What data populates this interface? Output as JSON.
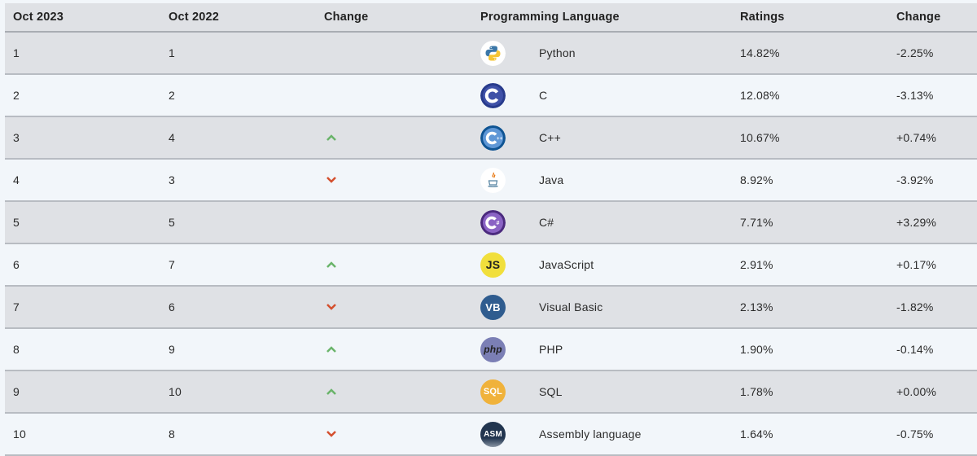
{
  "header": {
    "col1": "Oct 2023",
    "col2": "Oct 2022",
    "col3": "Change",
    "col4": "Programming Language",
    "col5": "Ratings",
    "col6": "Change"
  },
  "colors": {
    "up": "#6ab46a",
    "down": "#d4502e",
    "row_dark": "#dfe1e5",
    "row_light": "#f2f6fa"
  },
  "rows": [
    {
      "rank": "1",
      "prev": "1",
      "trend": "none",
      "icon": "python-logo-icon",
      "lang": "Python",
      "rating": "14.82%",
      "change": "-2.25%"
    },
    {
      "rank": "2",
      "prev": "2",
      "trend": "none",
      "icon": "c-logo-icon",
      "lang": "C",
      "rating": "12.08%",
      "change": "-3.13%"
    },
    {
      "rank": "3",
      "prev": "4",
      "trend": "up",
      "icon": "cpp-logo-icon",
      "lang": "C++",
      "rating": "10.67%",
      "change": "+0.74%"
    },
    {
      "rank": "4",
      "prev": "3",
      "trend": "down",
      "icon": "java-logo-icon",
      "lang": "Java",
      "rating": "8.92%",
      "change": "-3.92%"
    },
    {
      "rank": "5",
      "prev": "5",
      "trend": "none",
      "icon": "csharp-logo-icon",
      "lang": "C#",
      "rating": "7.71%",
      "change": "+3.29%"
    },
    {
      "rank": "6",
      "prev": "7",
      "trend": "up",
      "icon": "javascript-logo-icon",
      "lang": "JavaScript",
      "rating": "2.91%",
      "change": "+0.17%"
    },
    {
      "rank": "7",
      "prev": "6",
      "trend": "down",
      "icon": "visual-basic-logo-icon",
      "lang": "Visual Basic",
      "rating": "2.13%",
      "change": "-1.82%"
    },
    {
      "rank": "8",
      "prev": "9",
      "trend": "up",
      "icon": "php-logo-icon",
      "lang": "PHP",
      "rating": "1.90%",
      "change": "-0.14%"
    },
    {
      "rank": "9",
      "prev": "10",
      "trend": "up",
      "icon": "sql-logo-icon",
      "lang": "SQL",
      "rating": "1.78%",
      "change": "+0.00%"
    },
    {
      "rank": "10",
      "prev": "8",
      "trend": "down",
      "icon": "assembly-logo-icon",
      "lang": "Assembly language",
      "rating": "1.64%",
      "change": "-0.75%"
    }
  ],
  "logo_text": {
    "javascript": "JS",
    "visual_basic": "VB",
    "php": "php",
    "sql": "SQL",
    "assembly": "ASM"
  }
}
